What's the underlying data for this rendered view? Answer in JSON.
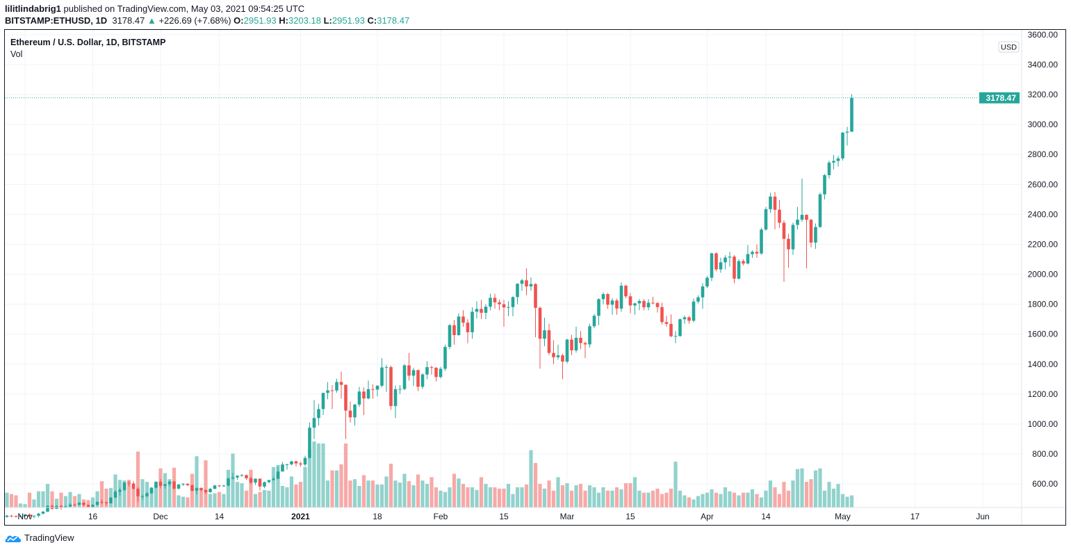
{
  "header": {
    "author": "lilitlindabrig1",
    "published": "published on TradingView.com, May 03, 2021 09:54:25 UTC",
    "symbol": "BITSTAMP:ETHUSD, 1D",
    "last": "3178.47",
    "change_arrow": "▲",
    "change": "+226.69 (+7.68%)",
    "o_label": "O:",
    "o": "2951.93",
    "h_label": "H:",
    "h": "3203.18",
    "l_label": "L:",
    "l": "2951.93",
    "c_label": "C:",
    "c": "3178.47"
  },
  "legend": {
    "title": "Ethereum / U.S. Dollar, 1D, BITSTAMP",
    "volume": "Vol"
  },
  "footer": {
    "brand": "TradingView",
    "logo_icon": "tradingview-cloud-icon"
  },
  "colors": {
    "up": "#26a69a",
    "down": "#ef5350",
    "vol_up": "#92d2cc",
    "vol_down": "#f7a9a7",
    "price_label_bg": "#26a69a"
  },
  "chart_data": {
    "type": "candlestick",
    "title": "Ethereum / U.S. Dollar, 1D, BITSTAMP",
    "currency": "USD",
    "ylim": [
      470,
      3620
    ],
    "grid": true,
    "price_ticks": [
      "600.00",
      "800.00",
      "1000.00",
      "1200.00",
      "1400.00",
      "1600.00",
      "1800.00",
      "2000.00",
      "2200.00",
      "2400.00",
      "2600.00",
      "2800.00",
      "3000.00",
      "3200.00",
      "3400.00",
      "3600.00"
    ],
    "current_price": "3178.47",
    "time_ticks": [
      {
        "label": "Nov",
        "date": "2020-11-01"
      },
      {
        "label": "16",
        "date": "2020-11-16"
      },
      {
        "label": "Dec",
        "date": "2020-12-01"
      },
      {
        "label": "14",
        "date": "2020-12-14"
      },
      {
        "label": "2021",
        "date": "2021-01-01"
      },
      {
        "label": "18",
        "date": "2021-01-18"
      },
      {
        "label": "Feb",
        "date": "2021-02-01"
      },
      {
        "label": "15",
        "date": "2021-02-15"
      },
      {
        "label": "Mar",
        "date": "2021-03-01"
      },
      {
        "label": "15",
        "date": "2021-03-15"
      },
      {
        "label": "Apr",
        "date": "2021-04-01"
      },
      {
        "label": "14",
        "date": "2021-04-14"
      },
      {
        "label": "May",
        "date": "2021-05-01"
      },
      {
        "label": "17",
        "date": "2021-05-17"
      },
      {
        "label": "Jun",
        "date": "2021-06-01"
      }
    ],
    "first_open": 380,
    "close": [
      388,
      386,
      383,
      386,
      396,
      383,
      388,
      402,
      415,
      454,
      434,
      453,
      444,
      449,
      462,
      461,
      475,
      460,
      448,
      460,
      480,
      478,
      471,
      509,
      548,
      560,
      608,
      603,
      568,
      518,
      518,
      538,
      575,
      615,
      587,
      598,
      616,
      569,
      596,
      601,
      592,
      555,
      573,
      560,
      545,
      568,
      590,
      586,
      589,
      636,
      643,
      655,
      659,
      638,
      609,
      635,
      583,
      612,
      626,
      635,
      683,
      730,
      731,
      751,
      737,
      730,
      774,
      976,
      1040,
      1100,
      1208,
      1225,
      1224,
      1281,
      1262,
      1090,
      1045,
      1130,
      1217,
      1171,
      1233,
      1230,
      1256,
      1378,
      1380,
      1120,
      1233,
      1234,
      1392,
      1323,
      1360,
      1249,
      1331,
      1380,
      1376,
      1314,
      1369,
      1515,
      1660,
      1594,
      1718,
      1677,
      1613,
      1750,
      1769,
      1743,
      1784,
      1843,
      1813,
      1800,
      1779,
      1781,
      1848,
      1937,
      1960,
      1919,
      1935,
      1776,
      1570,
      1626,
      1475,
      1446,
      1459,
      1417,
      1564,
      1492,
      1576,
      1541,
      1532,
      1653,
      1723,
      1834,
      1868,
      1797,
      1825,
      1771,
      1924,
      1853,
      1792,
      1806,
      1822,
      1780,
      1810,
      1808,
      1781,
      1681,
      1669,
      1586,
      1588,
      1700,
      1713,
      1690,
      1818,
      1846,
      1919,
      1977,
      2140,
      2033,
      2080,
      2112,
      2118,
      1971,
      2088,
      2072,
      2135,
      2150,
      2139,
      2299,
      2435,
      2519,
      2431,
      2344,
      2237,
      2167,
      2330,
      2365,
      2397,
      2364,
      2212,
      2316,
      2534,
      2662,
      2746,
      2757,
      2774,
      2946,
      2952,
      3178.47
    ],
    "high": [
      395,
      393,
      390,
      392,
      400,
      404,
      390,
      406,
      420,
      457,
      462,
      458,
      460,
      457,
      473,
      469,
      478,
      477,
      463,
      464,
      485,
      497,
      481,
      512,
      559,
      575,
      615,
      620,
      620,
      578,
      529,
      546,
      580,
      617,
      634,
      602,
      622,
      622,
      600,
      605,
      605,
      596,
      577,
      576,
      562,
      572,
      594,
      592,
      595,
      644,
      675,
      658,
      667,
      662,
      648,
      637,
      637,
      616,
      628,
      648,
      718,
      747,
      736,
      755,
      755,
      749,
      788,
      1010,
      1160,
      1135,
      1210,
      1280,
      1260,
      1302,
      1350,
      1265,
      1150,
      1135,
      1248,
      1245,
      1290,
      1265,
      1260,
      1440,
      1395,
      1390,
      1258,
      1260,
      1400,
      1475,
      1375,
      1365,
      1340,
      1420,
      1390,
      1380,
      1382,
      1530,
      1668,
      1695,
      1740,
      1760,
      1700,
      1780,
      1820,
      1830,
      1800,
      1870,
      1870,
      1830,
      1830,
      1820,
      1853,
      1940,
      1970,
      2040,
      1980,
      1940,
      1785,
      1710,
      1670,
      1560,
      1530,
      1470,
      1570,
      1595,
      1650,
      1620,
      1550,
      1670,
      1735,
      1840,
      1880,
      1875,
      1840,
      1838,
      1945,
      1930,
      1875,
      1810,
      1835,
      1835,
      1835,
      1850,
      1815,
      1810,
      1723,
      1732,
      1620,
      1705,
      1725,
      1722,
      1838,
      1860,
      1940,
      1990,
      2145,
      2146,
      2110,
      2128,
      2150,
      2128,
      2100,
      2100,
      2195,
      2160,
      2200,
      2310,
      2450,
      2545,
      2550,
      2495,
      2360,
      2270,
      2345,
      2450,
      2640,
      2400,
      2370,
      2340,
      2545,
      2670,
      2760,
      2797,
      2790,
      2950,
      2985,
      3203.18
    ],
    "low": [
      375,
      378,
      375,
      378,
      380,
      378,
      370,
      377,
      396,
      413,
      428,
      432,
      429,
      441,
      446,
      452,
      455,
      450,
      440,
      439,
      456,
      465,
      455,
      468,
      506,
      520,
      553,
      583,
      563,
      482,
      495,
      511,
      533,
      570,
      570,
      570,
      584,
      562,
      563,
      588,
      585,
      550,
      530,
      550,
      531,
      542,
      563,
      578,
      580,
      584,
      630,
      628,
      648,
      628,
      596,
      593,
      556,
      571,
      605,
      622,
      631,
      683,
      695,
      725,
      717,
      716,
      717,
      770,
      900,
      990,
      1060,
      1165,
      1100,
      1210,
      1170,
      900,
      1010,
      990,
      1115,
      1060,
      1165,
      1170,
      1185,
      1245,
      1215,
      1095,
      1040,
      1200,
      1225,
      1290,
      1255,
      1220,
      1235,
      1300,
      1330,
      1285,
      1305,
      1355,
      1500,
      1530,
      1590,
      1650,
      1540,
      1570,
      1705,
      1700,
      1700,
      1760,
      1770,
      1760,
      1650,
      1720,
      1720,
      1800,
      1890,
      1860,
      1890,
      1580,
      1370,
      1520,
      1460,
      1400,
      1430,
      1300,
      1405,
      1460,
      1477,
      1500,
      1440,
      1510,
      1640,
      1660,
      1800,
      1770,
      1730,
      1730,
      1750,
      1840,
      1740,
      1730,
      1760,
      1760,
      1760,
      1800,
      1745,
      1665,
      1650,
      1580,
      1540,
      1583,
      1670,
      1670,
      1680,
      1805,
      1770,
      1910,
      1955,
      2020,
      2010,
      2032,
      2050,
      1940,
      1965,
      2060,
      2065,
      2110,
      2110,
      2130,
      2290,
      2410,
      2300,
      2310,
      1950,
      2045,
      2130,
      2300,
      2350,
      2040,
      2180,
      2170,
      2310,
      2500,
      2640,
      2700,
      2720,
      2760,
      2860,
      2951.93
    ],
    "volume": [
      22,
      20,
      18,
      6,
      5,
      22,
      12,
      24,
      24,
      35,
      24,
      13,
      22,
      17,
      23,
      17,
      20,
      12,
      11,
      15,
      24,
      39,
      28,
      29,
      49,
      41,
      40,
      41,
      28,
      83,
      42,
      38,
      28,
      34,
      58,
      51,
      42,
      59,
      18,
      16,
      15,
      50,
      76,
      29,
      70,
      20,
      21,
      23,
      20,
      56,
      80,
      38,
      36,
      25,
      56,
      20,
      23,
      26,
      25,
      60,
      63,
      32,
      30,
      46,
      34,
      38,
      60,
      86,
      98,
      95,
      95,
      40,
      55,
      55,
      64,
      95,
      40,
      42,
      32,
      48,
      40,
      40,
      34,
      34,
      46,
      65,
      40,
      37,
      50,
      39,
      33,
      49,
      40,
      35,
      45,
      30,
      25,
      23,
      30,
      50,
      43,
      35,
      30,
      30,
      26,
      45,
      35,
      30,
      30,
      28,
      28,
      35,
      20,
      30,
      30,
      34,
      85,
      66,
      35,
      28,
      40,
      25,
      45,
      33,
      36,
      25,
      33,
      35,
      25,
      33,
      30,
      22,
      30,
      25,
      25,
      30,
      27,
      36,
      36,
      45,
      25,
      22,
      22,
      25,
      28,
      20,
      22,
      28,
      68,
      25,
      18,
      15,
      12,
      17,
      20,
      22,
      27,
      22,
      20,
      30,
      24,
      22,
      18,
      22,
      22,
      27,
      20,
      15,
      25,
      40,
      30,
      20,
      38,
      25,
      40,
      57,
      58,
      38,
      42,
      55,
      58,
      25,
      38,
      28,
      35,
      20,
      16,
      18
    ]
  }
}
